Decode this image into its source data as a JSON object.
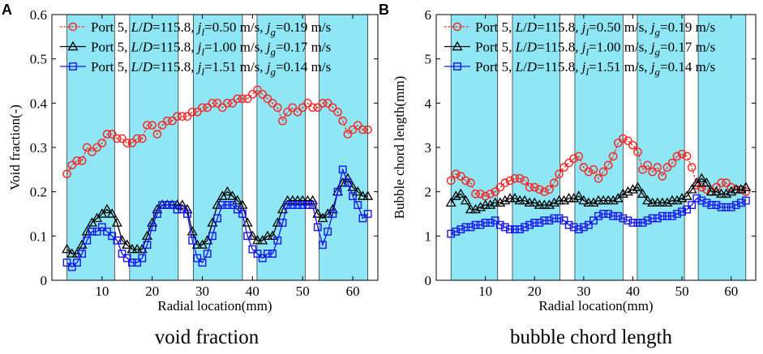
{
  "panel_labels": [
    "A",
    "B"
  ],
  "captions": [
    "void fraction",
    "bubble chord length"
  ],
  "colors": {
    "band": "#8fe6f4",
    "red": "#ff2020",
    "black": "#000000",
    "blue": "#1515ee"
  },
  "bands": [
    [
      3,
      12.5
    ],
    [
      15.5,
      25.2
    ],
    [
      28.2,
      38
    ],
    [
      40.9,
      50.5
    ],
    [
      53.3,
      63
    ]
  ],
  "legend": [
    {
      "prefix": "Port 5, ",
      "LD": "115.8",
      "jl": "0.50",
      "jg": "0.19"
    },
    {
      "prefix": "Port 5, ",
      "LD": "115.8",
      "jl": "1.00",
      "jg": "0.17"
    },
    {
      "prefix": "Port 5, ",
      "LD": "115.8",
      "jl": "1.51",
      "jg": "0.14"
    }
  ],
  "chart_data": [
    {
      "type": "line",
      "title": "void fraction",
      "xlabel": "Radial location(mm)",
      "ylabel": "Void fraction(-)",
      "xlim": [
        0,
        65
      ],
      "ylim": [
        0,
        0.6
      ],
      "xticks": [
        10,
        20,
        30,
        40,
        50,
        60
      ],
      "yticks": [
        0,
        0.1,
        0.2,
        0.3,
        0.4,
        0.5,
        0.6
      ],
      "ytick_labels": [
        "0",
        "0.1",
        "0.2",
        "0.3",
        "0.4",
        "0.5",
        "0.6"
      ],
      "x": [
        3,
        4,
        5,
        6,
        7,
        8,
        9,
        10,
        11,
        12,
        13,
        14,
        15,
        16,
        17,
        18,
        19,
        20,
        21,
        22,
        23,
        24,
        25,
        26,
        27,
        28,
        29,
        30,
        31,
        32,
        33,
        34,
        35,
        36,
        37,
        38,
        39,
        40,
        41,
        42,
        43,
        44,
        45,
        46,
        47,
        48,
        49,
        50,
        51,
        52,
        53,
        54,
        55,
        56,
        57,
        58,
        59,
        60,
        61,
        62,
        63
      ],
      "series": [
        {
          "name": "Port 5, L/D=115.8, jl=0.50 m/s, jg=0.19 m/s",
          "color": "red",
          "marker": "circle",
          "values": [
            0.24,
            0.26,
            0.27,
            0.27,
            0.3,
            0.29,
            0.3,
            0.31,
            0.33,
            0.33,
            0.32,
            0.32,
            0.31,
            0.31,
            0.32,
            0.32,
            0.35,
            0.35,
            0.33,
            0.35,
            0.36,
            0.36,
            0.37,
            0.37,
            0.37,
            0.38,
            0.38,
            0.39,
            0.39,
            0.4,
            0.4,
            0.39,
            0.4,
            0.4,
            0.41,
            0.41,
            0.41,
            0.42,
            0.43,
            0.42,
            0.41,
            0.4,
            0.39,
            0.36,
            0.38,
            0.39,
            0.38,
            0.39,
            0.4,
            0.39,
            0.39,
            0.4,
            0.4,
            0.39,
            0.38,
            0.36,
            0.33,
            0.34,
            0.35,
            0.34,
            0.34
          ]
        },
        {
          "name": "Port 5, L/D=115.8, jl=1.00 m/s, jg=0.17 m/s",
          "color": "black",
          "marker": "triangle",
          "values": [
            0.07,
            0.06,
            0.06,
            0.08,
            0.11,
            0.13,
            0.14,
            0.15,
            0.16,
            0.15,
            0.13,
            0.09,
            0.08,
            0.07,
            0.07,
            0.07,
            0.1,
            0.13,
            0.16,
            0.17,
            0.17,
            0.17,
            0.17,
            0.17,
            0.16,
            0.11,
            0.08,
            0.08,
            0.09,
            0.13,
            0.17,
            0.19,
            0.2,
            0.19,
            0.18,
            0.17,
            0.13,
            0.1,
            0.09,
            0.09,
            0.1,
            0.1,
            0.13,
            0.16,
            0.18,
            0.18,
            0.18,
            0.18,
            0.18,
            0.18,
            0.15,
            0.14,
            0.15,
            0.16,
            0.2,
            0.22,
            0.23,
            0.21,
            0.2,
            0.19,
            0.19
          ]
        },
        {
          "name": "Port 5, L/D=115.8, jl=1.51 m/s, jg=0.14 m/s",
          "color": "blue",
          "marker": "square",
          "values": [
            0.04,
            0.03,
            0.04,
            0.06,
            0.09,
            0.11,
            0.11,
            0.12,
            0.11,
            0.1,
            0.09,
            0.06,
            0.05,
            0.04,
            0.04,
            0.05,
            0.08,
            0.12,
            0.15,
            0.17,
            0.17,
            0.17,
            0.16,
            0.16,
            0.15,
            0.09,
            0.05,
            0.04,
            0.06,
            0.1,
            0.14,
            0.17,
            0.17,
            0.17,
            0.16,
            0.15,
            0.1,
            0.07,
            0.06,
            0.05,
            0.06,
            0.06,
            0.09,
            0.13,
            0.17,
            0.17,
            0.17,
            0.17,
            0.17,
            0.17,
            0.12,
            0.08,
            0.11,
            0.15,
            0.2,
            0.25,
            0.22,
            0.19,
            0.17,
            0.14,
            0.15
          ]
        }
      ]
    },
    {
      "type": "line",
      "title": "bubble chord length",
      "xlabel": "Radial location(mm)",
      "ylabel": "Bubble chord length(mm)",
      "xlim": [
        0,
        65
      ],
      "ylim": [
        0,
        6
      ],
      "xticks": [
        10,
        20,
        30,
        40,
        50,
        60
      ],
      "yticks": [
        0,
        1,
        2,
        3,
        4,
        5,
        6
      ],
      "ytick_labels": [
        "0",
        "1",
        "2",
        "3",
        "4",
        "5",
        "6"
      ],
      "x": [
        3,
        4,
        5,
        6,
        7,
        8,
        9,
        10,
        11,
        12,
        13,
        14,
        15,
        16,
        17,
        18,
        19,
        20,
        21,
        22,
        23,
        24,
        25,
        26,
        27,
        28,
        29,
        30,
        31,
        32,
        33,
        34,
        35,
        36,
        37,
        38,
        39,
        40,
        41,
        42,
        43,
        44,
        45,
        46,
        47,
        48,
        49,
        50,
        51,
        52,
        53,
        54,
        55,
        56,
        57,
        58,
        59,
        60,
        61,
        62,
        63
      ],
      "series": [
        {
          "name": "Port 5, L/D=115.8, jl=0.50 m/s, jg=0.19 m/s",
          "color": "red",
          "marker": "circle",
          "values": [
            2.25,
            2.4,
            2.35,
            2.25,
            2.2,
            1.95,
            1.95,
            1.9,
            1.95,
            2.0,
            2.1,
            2.2,
            2.25,
            2.3,
            2.3,
            2.25,
            2.1,
            2.1,
            2.05,
            2.0,
            2.05,
            2.2,
            2.4,
            2.55,
            2.65,
            2.75,
            2.8,
            2.55,
            2.45,
            2.5,
            2.3,
            2.45,
            2.6,
            2.8,
            3.1,
            3.2,
            3.15,
            3.05,
            2.9,
            2.5,
            2.6,
            2.45,
            2.55,
            2.35,
            2.55,
            2.65,
            2.8,
            2.85,
            2.8,
            2.55,
            2.15,
            2.1,
            2.05,
            2.0,
            2.1,
            2.2,
            2.2,
            2.1,
            2.05,
            2.05,
            2.0
          ]
        },
        {
          "name": "Port 5, L/D=115.8, jl=1.00 m/s, jg=0.17 m/s",
          "color": "black",
          "marker": "triangle",
          "values": [
            1.75,
            1.9,
            1.95,
            1.8,
            1.6,
            1.6,
            1.65,
            1.7,
            1.7,
            1.75,
            1.75,
            1.8,
            1.85,
            1.85,
            1.8,
            1.8,
            1.75,
            1.75,
            1.7,
            1.7,
            1.7,
            1.75,
            1.8,
            1.8,
            1.85,
            1.85,
            1.9,
            1.8,
            1.75,
            1.75,
            1.8,
            1.8,
            1.8,
            1.8,
            1.85,
            1.95,
            2.0,
            2.05,
            2.1,
            1.95,
            1.8,
            1.75,
            1.75,
            1.75,
            1.75,
            1.8,
            1.8,
            1.85,
            1.9,
            2.05,
            2.2,
            2.3,
            2.2,
            2.0,
            2.0,
            1.95,
            1.95,
            2.0,
            2.05,
            2.05,
            2.1
          ]
        },
        {
          "name": "Port 5, L/D=115.8, jl=1.51 m/s, jg=0.14 m/s",
          "color": "blue",
          "marker": "square",
          "values": [
            1.05,
            1.1,
            1.15,
            1.2,
            1.2,
            1.25,
            1.25,
            1.3,
            1.3,
            1.35,
            1.25,
            1.2,
            1.15,
            1.15,
            1.15,
            1.2,
            1.25,
            1.3,
            1.3,
            1.35,
            1.35,
            1.4,
            1.4,
            1.35,
            1.25,
            1.2,
            1.15,
            1.2,
            1.25,
            1.35,
            1.45,
            1.5,
            1.5,
            1.45,
            1.45,
            1.4,
            1.35,
            1.3,
            1.3,
            1.3,
            1.35,
            1.4,
            1.4,
            1.45,
            1.45,
            1.45,
            1.5,
            1.55,
            1.6,
            1.7,
            1.85,
            1.8,
            1.75,
            1.7,
            1.7,
            1.65,
            1.65,
            1.65,
            1.7,
            1.75,
            1.8
          ]
        }
      ]
    }
  ]
}
